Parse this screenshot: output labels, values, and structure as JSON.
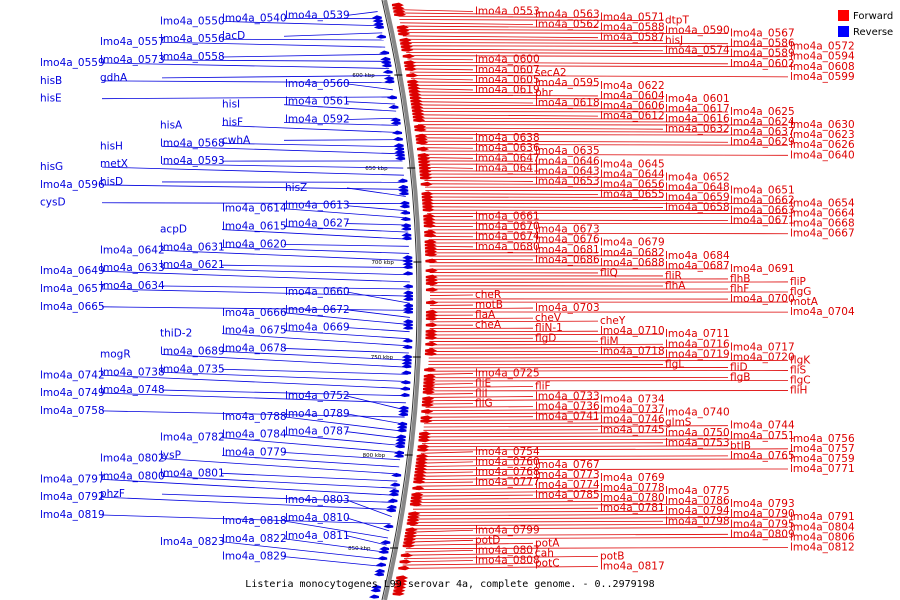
{
  "caption": "Listeria monocytogenes L99 serovar 4a, complete genome. - 0..2979198",
  "legend": {
    "items": [
      {
        "label": "Forward",
        "color": "#ff0000"
      },
      {
        "label": "Reverse",
        "color": "#0000ff"
      }
    ]
  },
  "ticks": [
    "600 kbp",
    "650 kbp",
    "700 kbp",
    "750 kbp",
    "800 kbp",
    "850 kbp"
  ],
  "colors": {
    "forward": "#dd0000",
    "reverse": "#0000dd"
  },
  "reverse_labels": [
    "lmo4a_0539",
    "lmo4a_0540",
    "lmo4a_0550",
    "lacD",
    "lmo4a_0556",
    "lmo4a_0557",
    "lmo4a_0558",
    "lmo4a_0573",
    "lmo4a_0559",
    "gdhA",
    "hisB",
    "lmo4a_0560",
    "hisE",
    "lmo4a_0561",
    "hisI",
    "lmo4a_0592",
    "hisF",
    "hisA",
    "cwhA",
    "lmo4a_0568",
    "hisH",
    "lmo4a_0593",
    "metX",
    "hisG",
    "hisD",
    "lmo4a_0596",
    "hisZ",
    "cysD",
    "lmo4a_0613",
    "lmo4a_0614",
    "lmo4a_0627",
    "lmo4a_0615",
    "acpD",
    "lmo4a_0620",
    "lmo4a_0631",
    "lmo4a_0642",
    "lmo4a_0621",
    "lmo4a_0633",
    "lmo4a_0649",
    "lmo4a_0634",
    "lmo4a_0657",
    "lmo4a_0660",
    "lmo4a_0665",
    "lmo4a_0672",
    "lmo4a_0666",
    "lmo4a_0669",
    "lmo4a_0675",
    "thiD-2",
    "lmo4a_0678",
    "lmo4a_0689",
    "mogR",
    "lmo4a_0735",
    "lmo4a_0738",
    "lmo4a_0742",
    "lmo4a_0748",
    "lmo4a_0749",
    "lmo4a_0752",
    "lmo4a_0758",
    "lmo4a_0789",
    "lmo4a_0788",
    "lmo4a_0787",
    "lmo4a_0784",
    "lmo4a_0782",
    "lmo4a_0779",
    "lysP",
    "lmo4a_0802",
    "lmo4a_0801",
    "lmo4a_0800",
    "lmo4a_0797",
    "phzF",
    "lmo4a_0792",
    "lmo4a_0803",
    "lmo4a_0819",
    "lmo4a_0810",
    "lmo4a_0818",
    "lmo4a_0811",
    "lmo4a_0822",
    "lmo4a_0823",
    "lmo4a_0829"
  ],
  "forward_labels": [
    "lmo4a_0553",
    "lmo4a_0563",
    "lmo4a_0571",
    "dtpT",
    "lmo4a_0562",
    "lmo4a_0588",
    "lmo4a_0590",
    "lmo4a_0567",
    "lmo4a_0587",
    "hisJ",
    "lmo4a_0586",
    "lmo4a_0572",
    "lmo4a_0574",
    "lmo4a_0589",
    "lmo4a_0594",
    "lmo4a_0600",
    "lmo4a_0602",
    "lmo4a_0608",
    "lmo4a_0607",
    "secA2",
    "lmo4a_0599",
    "lmo4a_0605",
    "lmo4a_0595",
    "lmo4a_0622",
    "lmo4a_0619",
    "phr",
    "lmo4a_0604",
    "lmo4a_0601",
    "lmo4a_0618",
    "lmo4a_0606",
    "lmo4a_0617",
    "lmo4a_0625",
    "lmo4a_0612",
    "lmo4a_0616",
    "lmo4a_0624",
    "lmo4a_0630",
    "lmo4a_0632",
    "lmo4a_0637",
    "lmo4a_0623",
    "lmo4a_0638",
    "lmo4a_0629",
    "lmo4a_0626",
    "lmo4a_0636",
    "lmo4a_0635",
    "lmo4a_0640",
    "lmo4a_0647",
    "lmo4a_0646",
    "lmo4a_0645",
    "lmo4a_0641",
    "lmo4a_0643",
    "lmo4a_0644",
    "lmo4a_0652",
    "lmo4a_0653",
    "lmo4a_0656",
    "lmo4a_0648",
    "lmo4a_0651",
    "lmo4a_0655",
    "lmo4a_0659",
    "lmo4a_0662",
    "lmo4a_0654",
    "lmo4a_0658",
    "lmo4a_0663",
    "lmo4a_0664",
    "lmo4a_0661",
    "lmo4a_0671",
    "lmo4a_0668",
    "lmo4a_0670",
    "lmo4a_0673",
    "lmo4a_0667",
    "lmo4a_0674",
    "lmo4a_0676",
    "lmo4a_0679",
    "lmo4a_0680",
    "lmo4a_0681",
    "lmo4a_0682",
    "lmo4a_0684",
    "lmo4a_0686",
    "lmo4a_0688",
    "lmo4a_0687",
    "lmo4a_0691",
    "fliQ",
    "fliR",
    "flhB",
    "fliP",
    "flhA",
    "flhF",
    "flgG",
    "cheR",
    "lmo4a_0700",
    "motA",
    "motB",
    "lmo4a_0703",
    "lmo4a_0704",
    "flaA",
    "cheV",
    "cheY",
    "cheA",
    "fliN-1",
    "lmo4a_0710",
    "lmo4a_0711",
    "flgD",
    "fliM",
    "lmo4a_0716",
    "lmo4a_0717",
    "lmo4a_0718",
    "lmo4a_0719",
    "lmo4a_0720",
    "flgK",
    "flgL",
    "fliD",
    "fliS",
    "lmo4a_0725",
    "flgB",
    "flgC",
    "fliE",
    "fliF",
    "fliH",
    "fliI",
    "lmo4a_0733",
    "lmo4a_0734",
    "fliG",
    "lmo4a_0736",
    "lmo4a_0737",
    "lmo4a_0740",
    "lmo4a_0741",
    "lmo4a_0746",
    "glmS",
    "lmo4a_0744",
    "lmo4a_0745",
    "lmo4a_0750",
    "lmo4a_0751",
    "lmo4a_0756",
    "lmo4a_0753",
    "btlB",
    "lmo4a_0757",
    "lmo4a_0754",
    "lmo4a_0765",
    "lmo4a_0759",
    "lmo4a_0760",
    "lmo4a_0767",
    "lmo4a_0771",
    "lmo4a_0768",
    "lmo4a_0773",
    "lmo4a_0769",
    "lmo4a_0777",
    "lmo4a_0774",
    "lmo4a_0778",
    "lmo4a_0775",
    "lmo4a_0785",
    "lmo4a_0780",
    "lmo4a_0786",
    "lmo4a_0793",
    "lmo4a_0781",
    "lmo4a_0794",
    "lmo4a_0790",
    "lmo4a_0791",
    "lmo4a_0798",
    "lmo4a_0795",
    "lmo4a_0804",
    "lmo4a_0799",
    "lmo4a_0809",
    "lmo4a_0806",
    "potD",
    "potA",
    "lmo4a_0812",
    "lmo4a_0807",
    "cah",
    "potB",
    "lmo4a_0808",
    "potC",
    "lmo4a_0817"
  ]
}
